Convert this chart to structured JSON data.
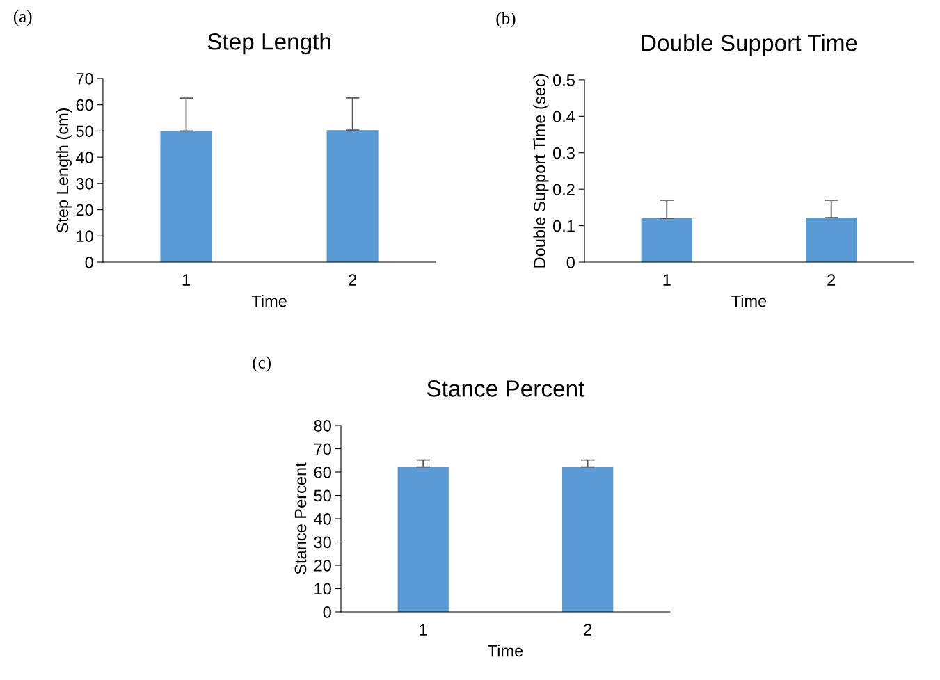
{
  "chart_data": [
    {
      "type": "bar",
      "title": "Step Length",
      "xlabel": "Time",
      "ylabel": "Step Length (cm)",
      "categories": [
        "1",
        "2"
      ],
      "values": [
        50,
        50.3
      ],
      "errors": [
        [
          50,
          62.5
        ],
        [
          50.3,
          62.6
        ]
      ],
      "color": "#5b9bd5",
      "ylim": [
        0,
        70
      ],
      "yticks": [
        0,
        10,
        20,
        30,
        40,
        50,
        60,
        70
      ],
      "grid": false,
      "legend": false,
      "annotations": [
        "(a)"
      ]
    },
    {
      "type": "bar",
      "title": "Double Support Time",
      "xlabel": "Time",
      "ylabel": "Double Support Time (sec)",
      "categories": [
        "1",
        "2"
      ],
      "values": [
        0.12,
        0.122
      ],
      "errors": [
        [
          0.12,
          0.17
        ],
        [
          0.122,
          0.17
        ]
      ],
      "color": "#5b9bd5",
      "ylim": [
        0,
        0.5
      ],
      "yticks": [
        {
          "value": 0,
          "label": "0"
        },
        0.1,
        0.2,
        0.3,
        0.4,
        0.5
      ],
      "grid": false,
      "legend": false,
      "annotations": [
        "(b)"
      ]
    },
    {
      "type": "bar",
      "title": "Stance Percent",
      "xlabel": "Time",
      "ylabel": "Stance Percent",
      "categories": [
        "1",
        "2"
      ],
      "values": [
        62.2,
        62.2
      ],
      "errors": [
        [
          62.2,
          65.2
        ],
        [
          62.2,
          65.2
        ]
      ],
      "color": "#5b9bd5",
      "ylim": [
        0,
        80
      ],
      "yticks": [
        0,
        10,
        20,
        30,
        40,
        50,
        60,
        70,
        80
      ],
      "grid": false,
      "legend": false,
      "annotations": [
        "(c)"
      ]
    }
  ]
}
